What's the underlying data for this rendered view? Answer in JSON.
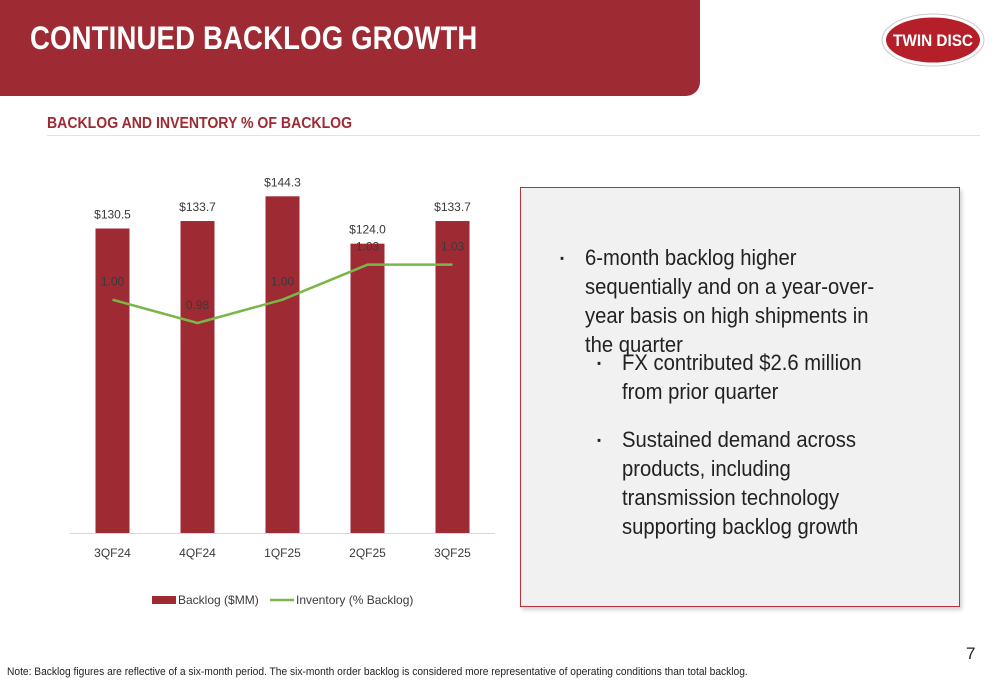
{
  "header": {
    "title": "CONTINUED BACKLOG GROWTH",
    "logo_text": "TWIN DISC"
  },
  "section": {
    "title": "BACKLOG AND INVENTORY % OF BACKLOG"
  },
  "chart_data": {
    "type": "bar",
    "categories": [
      "3QF24",
      "4QF24",
      "1QF25",
      "2QF25",
      "3QF25"
    ],
    "series": [
      {
        "name": "Backlog ($MM)",
        "kind": "bar",
        "axis": "left",
        "color": "#9e2a33",
        "values": [
          130.5,
          133.7,
          144.3,
          124.0,
          133.7
        ],
        "labels": [
          "$130.5",
          "$133.7",
          "$144.3",
          "$124.0",
          "$133.7"
        ]
      },
      {
        "name": "Inventory (% Backlog)",
        "kind": "line",
        "axis": "right",
        "color": "#7ab648",
        "values": [
          1.0,
          0.98,
          1.0,
          1.03,
          1.03
        ],
        "labels": [
          "1.00",
          "0.98",
          "1.00",
          "1.03",
          "1.03"
        ]
      }
    ],
    "ylim": [
      0,
      150
    ],
    "y2lim": [
      0.8,
      1.1
    ],
    "grid": false,
    "legend_position": "bottom"
  },
  "panel": {
    "bullets": [
      {
        "level": 1,
        "text": "6-month backlog higher sequentially and on a year-over-year basis on high shipments in the quarter"
      },
      {
        "level": 2,
        "text": "FX contributed $2.6 million from prior quarter"
      },
      {
        "level": 2,
        "text": "Sustained demand across products, including transmission technology supporting backlog growth"
      }
    ],
    "bullet_marker": "▪"
  },
  "footer": {
    "page_number": "7",
    "note": "Note: Backlog figures are reflective of a six-month period. The six-month order backlog is considered more representative of operating conditions than total backlog."
  }
}
